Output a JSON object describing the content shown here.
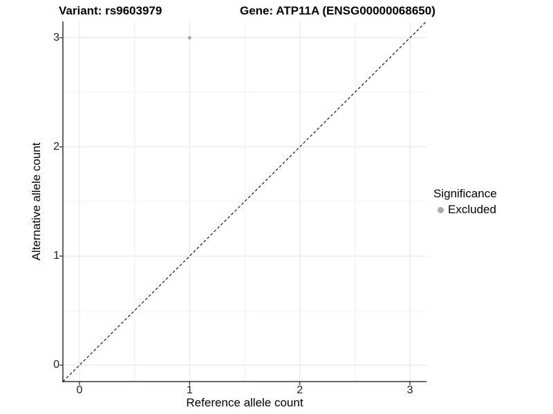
{
  "titles": {
    "variant": "Variant: rs9603979",
    "gene": "Gene: ATP11A (ENSG00000068650)"
  },
  "chart_data": {
    "type": "scatter",
    "title_left": "Variant: rs9603979",
    "title_right": "Gene: ATP11A (ENSG00000068650)",
    "xlabel": "Reference allele count",
    "ylabel": "Alternative allele count",
    "xlim": [
      -0.15,
      3.15
    ],
    "ylim": [
      -0.15,
      3.15
    ],
    "xticks": [
      0,
      1,
      2,
      3
    ],
    "yticks": [
      0,
      1,
      2,
      3
    ],
    "minor_ticks_x": [
      0.5,
      1.5,
      2.5
    ],
    "minor_ticks_y": [
      0.5,
      1.5,
      2.5
    ],
    "grid": "major+minor",
    "points": [
      {
        "x": 1,
        "y": 3,
        "series": "Excluded"
      }
    ],
    "point_radius": 2.5,
    "reference_line": {
      "kind": "identity",
      "slope": 1,
      "intercept": 0,
      "style": "dashed",
      "dash": "4 3"
    },
    "legend": {
      "position": "right",
      "title": "Significance",
      "items": [
        {
          "label": "Excluded",
          "color": "#aaaaaa",
          "marker": "circle"
        }
      ]
    }
  },
  "colors": {
    "background": "#ffffff",
    "grid_major": "#e4e4e4",
    "grid_minor": "#f1f1f1",
    "axis_line": "#333333",
    "tick_mark": "#333333",
    "tick_text": "#1a1a1a",
    "title_text": "#000000",
    "reference_line": "#000000",
    "point": "#aaaaaa"
  }
}
